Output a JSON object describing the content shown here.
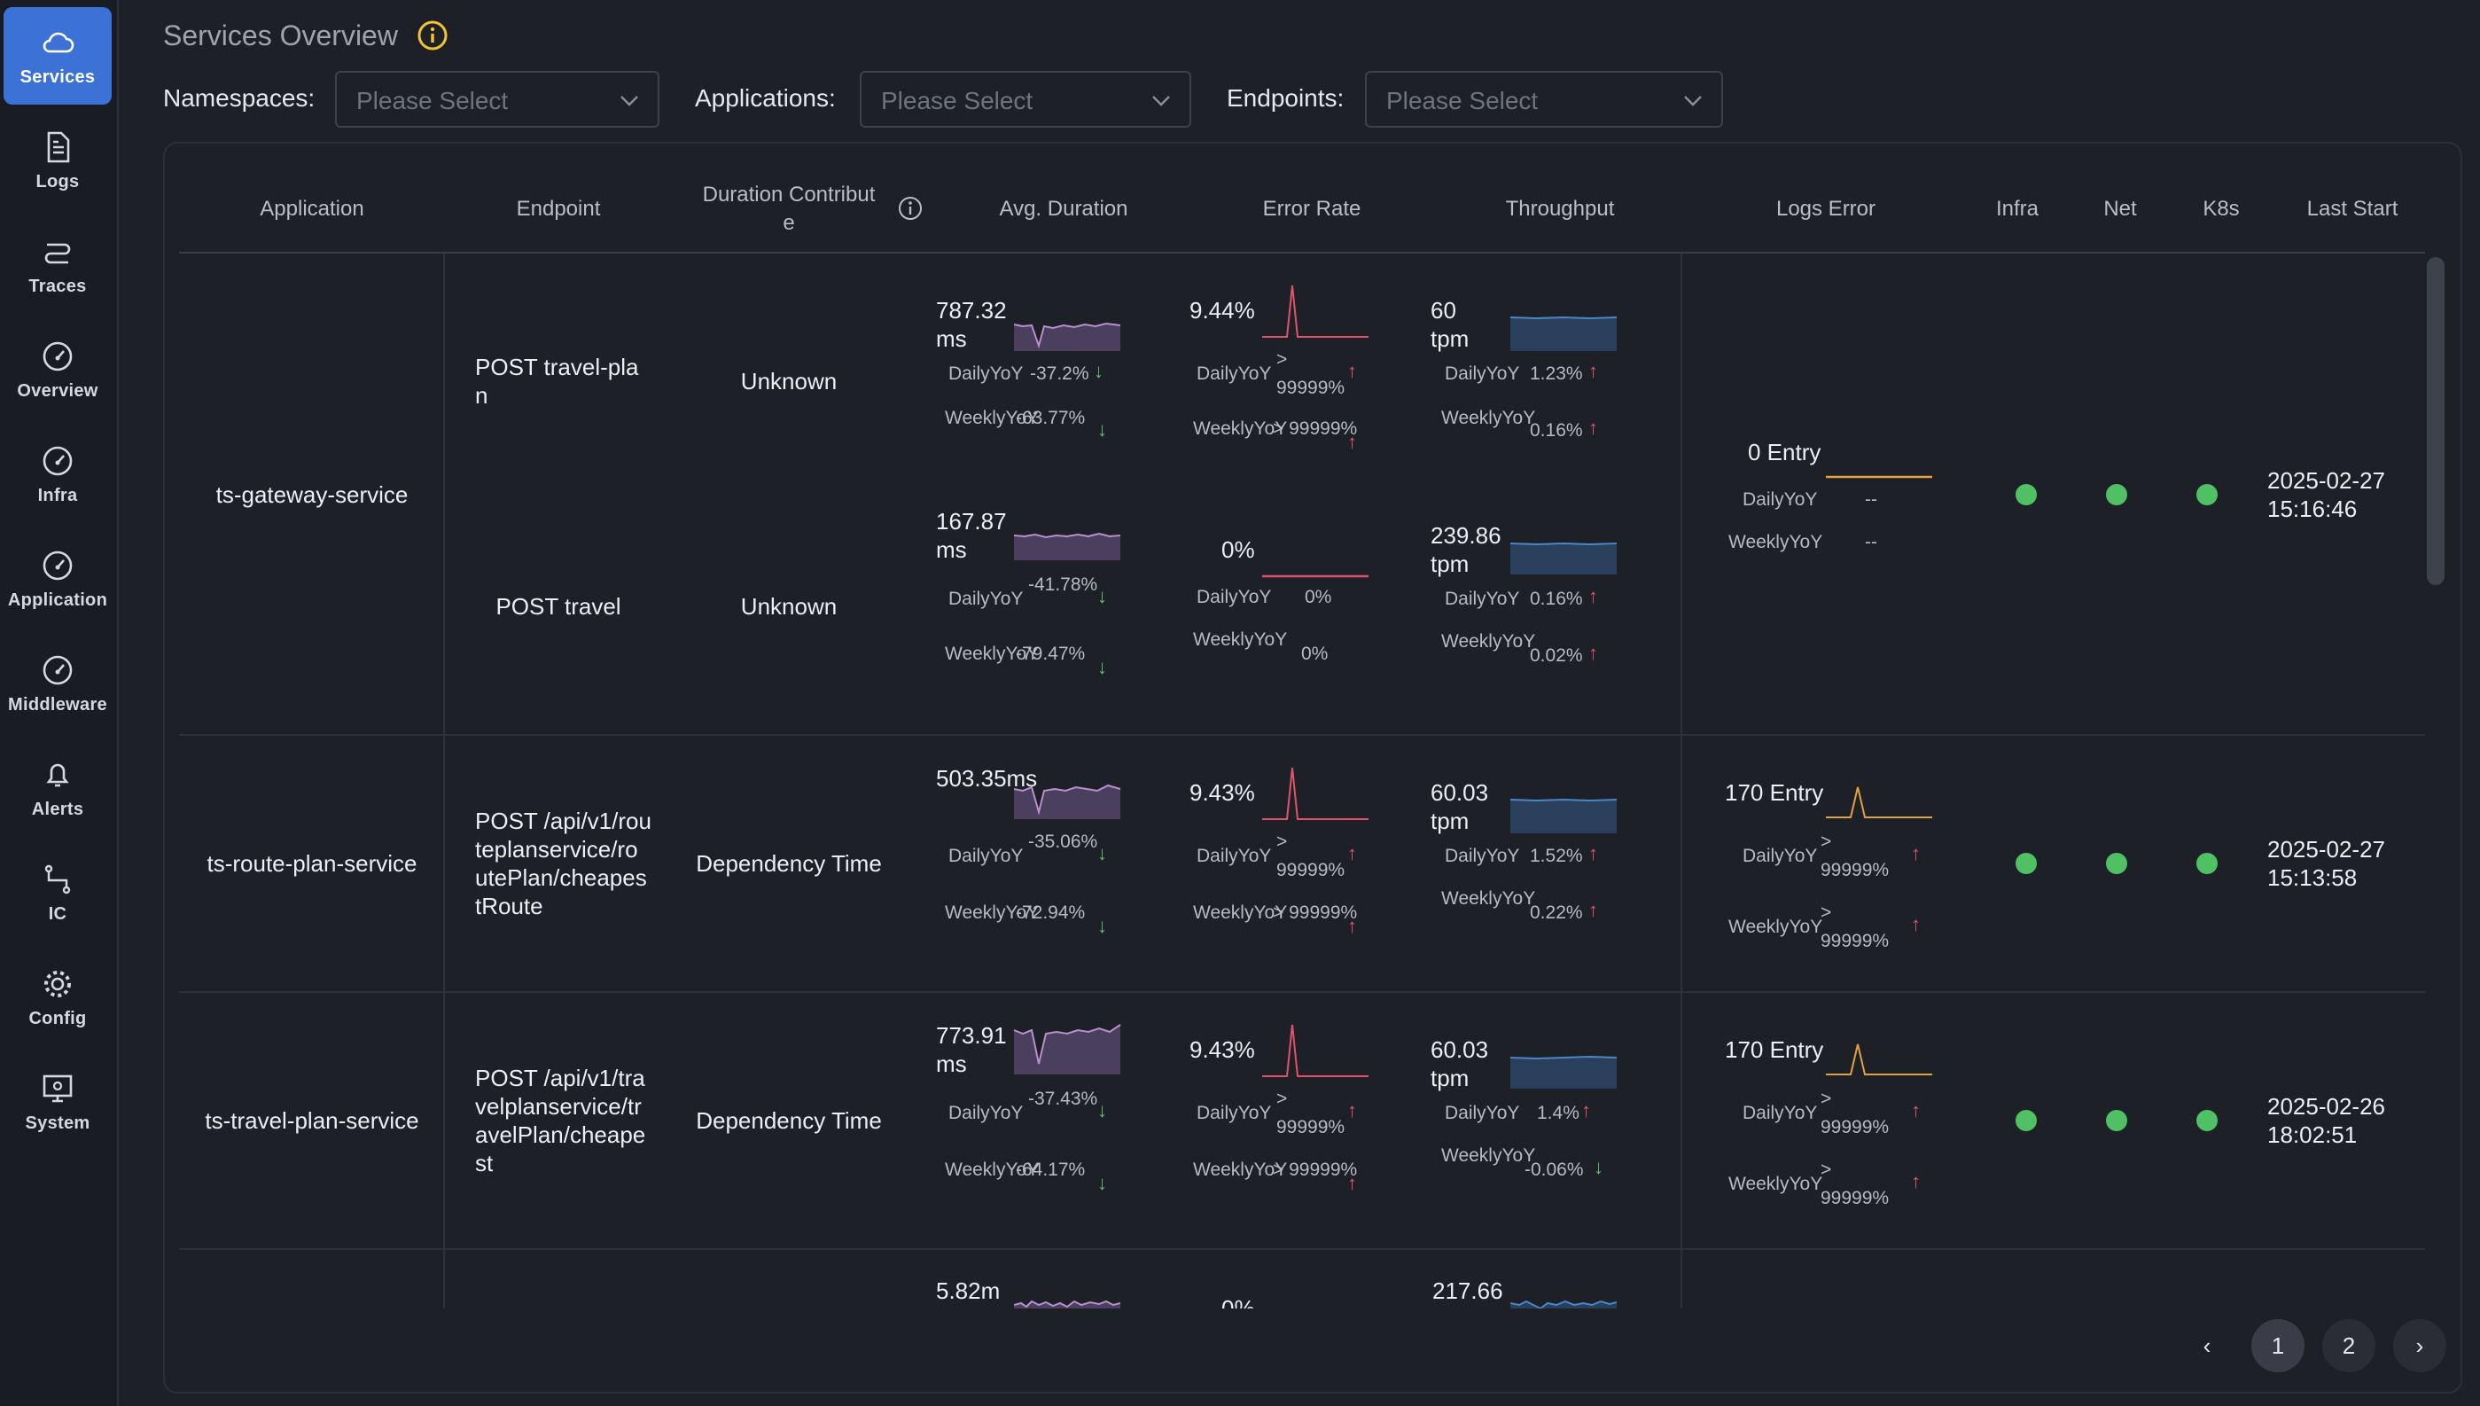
{
  "sidebar": {
    "items": [
      {
        "label": "Services",
        "icon": "cloud-icon",
        "active": true
      },
      {
        "label": "Logs",
        "icon": "document-icon"
      },
      {
        "label": "Traces",
        "icon": "route-icon"
      },
      {
        "label": "Overview",
        "icon": "gauge-icon"
      },
      {
        "label": "Infra",
        "icon": "gauge-icon"
      },
      {
        "label": "Application",
        "icon": "gauge-icon"
      },
      {
        "label": "Middleware",
        "icon": "gauge-icon"
      },
      {
        "label": "Alerts",
        "icon": "bell-icon"
      },
      {
        "label": "IC",
        "icon": "graph-icon"
      },
      {
        "label": "Config",
        "icon": "gear-icon"
      },
      {
        "label": "System",
        "icon": "monitor-icon"
      }
    ]
  },
  "header": {
    "title": "Services Overview",
    "filters": [
      {
        "label": "Namespaces",
        "placeholder": "Please Select"
      },
      {
        "label": "Applications",
        "placeholder": "Please Select"
      },
      {
        "label": "Endpoints",
        "placeholder": "Please Select"
      }
    ]
  },
  "table": {
    "columns": [
      "Application",
      "Endpoint",
      "Duration Contribute",
      "Avg. Duration",
      "Error Rate",
      "Throughput",
      "Logs Error",
      "Infra",
      "Net",
      "K8s",
      "Last Start"
    ],
    "daily_label": "DailyYoY",
    "weekly_label": "WeeklyYoY",
    "rows": [
      {
        "application": "ts-gateway-service",
        "last_start": "2025-02-27 15:16:46",
        "logs_error": {
          "value": "0 Entry",
          "daily": "--",
          "weekly": "--"
        },
        "status": {
          "infra": "healthy",
          "net": "healthy",
          "k8s": "healthy"
        },
        "endpoints": [
          {
            "endpoint": "POST travel-plan",
            "contribution": "Unknown",
            "avg_duration": {
              "value": "787.32 ms",
              "daily": "-37.2%",
              "weekly": "-63.77%"
            },
            "error_rate": {
              "value": "9.44%",
              "daily": "> 99999%",
              "weekly": "> 99999%"
            },
            "throughput": {
              "value": "60 tpm",
              "daily": "1.23%",
              "weekly": "0.16%"
            }
          },
          {
            "endpoint": "POST travel",
            "contribution": "Unknown",
            "avg_duration": {
              "value": "167.87 ms",
              "daily": "-41.78%",
              "weekly": "-79.47%"
            },
            "error_rate": {
              "value": "0%",
              "daily": "0%",
              "weekly": "0%"
            },
            "throughput": {
              "value": "239.86 tpm",
              "daily": "0.16%",
              "weekly": "0.02%"
            }
          }
        ]
      },
      {
        "application": "ts-route-plan-service",
        "last_start": "2025-02-27 15:13:58",
        "logs_error": {
          "value": "170 Entry",
          "daily": "> 99999%",
          "weekly": "> 99999%"
        },
        "status": {
          "infra": "healthy",
          "net": "healthy",
          "k8s": "healthy"
        },
        "endpoints": [
          {
            "endpoint": "POST /api/v1/routeplanservice/routePlan/cheapestRoute",
            "contribution": "Dependency Time",
            "avg_duration": {
              "value": "503.35ms",
              "daily": "-35.06%",
              "weekly": "-72.94%"
            },
            "error_rate": {
              "value": "9.43%",
              "daily": "> 99999%",
              "weekly": "> 99999%"
            },
            "throughput": {
              "value": "60.03 tpm",
              "daily": "1.52%",
              "weekly": "0.22%"
            }
          }
        ]
      },
      {
        "application": "ts-travel-plan-service",
        "last_start": "2025-02-26 18:02:51",
        "logs_error": {
          "value": "170 Entry",
          "daily": "> 99999%",
          "weekly": "> 99999%"
        },
        "status": {
          "infra": "healthy",
          "net": "healthy",
          "k8s": "healthy"
        },
        "endpoints": [
          {
            "endpoint": "POST /api/v1/travelplanservice/travelPlan/cheapest",
            "contribution": "Dependency Time",
            "avg_duration": {
              "value": "773.91 ms",
              "daily": "-37.43%",
              "weekly": "-64.17%"
            },
            "error_rate": {
              "value": "9.43%",
              "daily": "> 99999%",
              "weekly": "> 99999%"
            },
            "throughput": {
              "value": "60.03 tpm",
              "daily": "1.4%",
              "weekly": "-0.06%"
            }
          }
        ]
      },
      {
        "application": "",
        "endpoints": [
          {
            "avg_duration": {
              "value": "5.82m"
            },
            "error_rate": {
              "value": "0%"
            },
            "throughput": {
              "value": "217.66"
            }
          }
        ]
      }
    ]
  },
  "pagination": {
    "prev": "‹",
    "pages": [
      "1",
      "2"
    ],
    "current": "1",
    "next": "›"
  },
  "colors": {
    "accent": "#3c72d6",
    "healthy": "#4fc164",
    "up_arrow": "#e0536a",
    "down_arrow": "#5bc46d",
    "duration_spark": "#a46bb0",
    "error_spark": "#e0536a",
    "throughput_spark": "#4a86c8",
    "logs_spark": "#e2a23c"
  },
  "text": {
    "col_duration_1": "Duration Contribut",
    "col_duration_2": "e",
    "r1_endpoint1_l1": "POST travel-pla",
    "r1_endpoint1_l2": "n",
    "r2_endpoint_l1": "POST /api/v1/rou",
    "r2_endpoint_l2": "teplanservice/ro",
    "r2_endpoint_l3": "utePlan/cheapes",
    "r2_endpoint_l4": "tRoute",
    "r3_endpoint_l1": "POST /api/v1/tra",
    "r3_endpoint_l2": "velplanservice/tr",
    "r3_endpoint_l3": "avelPlan/cheape",
    "r3_endpoint_l4": "st",
    "last_start_1_date": "2025-02-27",
    "last_start_1_time": "15:16:46",
    "last_start_2_date": "2025-02-27",
    "last_start_2_time": "15:13:58",
    "last_start_3_date": "2025-02-26",
    "last_start_3_time": "18:02:51"
  }
}
